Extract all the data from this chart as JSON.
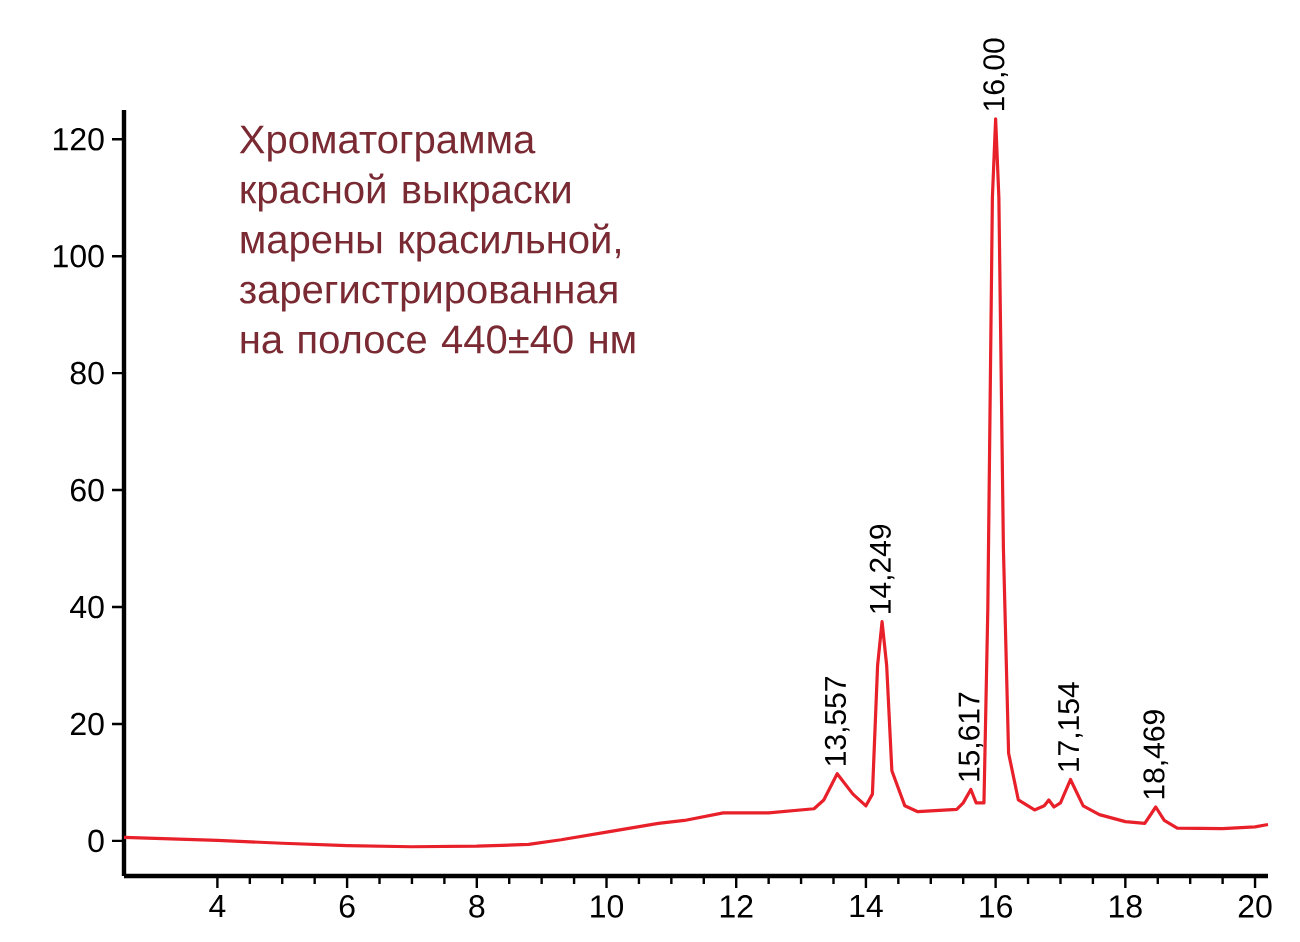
{
  "chart_data": {
    "type": "line",
    "title": "Хроматограмма красной выкраски марены красильной, зарегистрированная на полосе 440±40 нм",
    "x": [
      2.56,
      4,
      5,
      6,
      7,
      8,
      8.8,
      9.3,
      10,
      10.8,
      11.2,
      11.8,
      12.5,
      13.2,
      13.35,
      13.557,
      13.8,
      14.0,
      14.1,
      14.18,
      14.249,
      14.32,
      14.4,
      14.6,
      14.8,
      15.4,
      15.5,
      15.617,
      15.7,
      15.82,
      15.88,
      15.95,
      16.0,
      16.05,
      16.12,
      16.2,
      16.35,
      16.6,
      16.75,
      16.82,
      16.9,
      17.0,
      17.154,
      17.35,
      17.6,
      18.0,
      18.3,
      18.469,
      18.6,
      18.8,
      19.5,
      20.0,
      20.2
    ],
    "series": [
      {
        "color": "#e8202a",
        "values": [
          0.6,
          0.1,
          -0.4,
          -0.8,
          -1.0,
          -0.9,
          -0.6,
          0.2,
          1.5,
          3,
          3.5,
          4.8,
          4.8,
          5.5,
          7,
          11.5,
          8,
          6,
          8,
          30,
          37.5,
          30,
          12,
          6,
          5,
          5.4,
          6.5,
          8.8,
          6.5,
          6.5,
          40,
          110,
          123.5,
          110,
          50,
          15,
          7,
          5.3,
          6,
          7,
          5.8,
          6.5,
          10.5,
          6,
          4.5,
          3.3,
          3,
          5.8,
          3.5,
          2.2,
          2.1,
          2.4,
          2.8
        ]
      }
    ],
    "xlim": [
      2.56,
      20.2
    ],
    "ylim": [
      -6,
      125
    ],
    "xticks": [
      4,
      6,
      8,
      10,
      12,
      14,
      16,
      18,
      20
    ],
    "yticks": [
      0,
      20,
      40,
      60,
      80,
      100,
      120
    ],
    "marker": "none",
    "line_style": "solid",
    "annotations": [
      {
        "text": "13,557",
        "x": 13.557,
        "y": 11.5
      },
      {
        "text": "14,249",
        "x": 14.249,
        "y": 37.5
      },
      {
        "text": "15,617",
        "x": 15.617,
        "y": 8.8
      },
      {
        "text": "16,00",
        "x": 16.0,
        "y": 123.5
      },
      {
        "text": "17,154",
        "x": 17.154,
        "y": 10.5
      },
      {
        "text": "18,469",
        "x": 18.469,
        "y": 5.8
      }
    ]
  }
}
